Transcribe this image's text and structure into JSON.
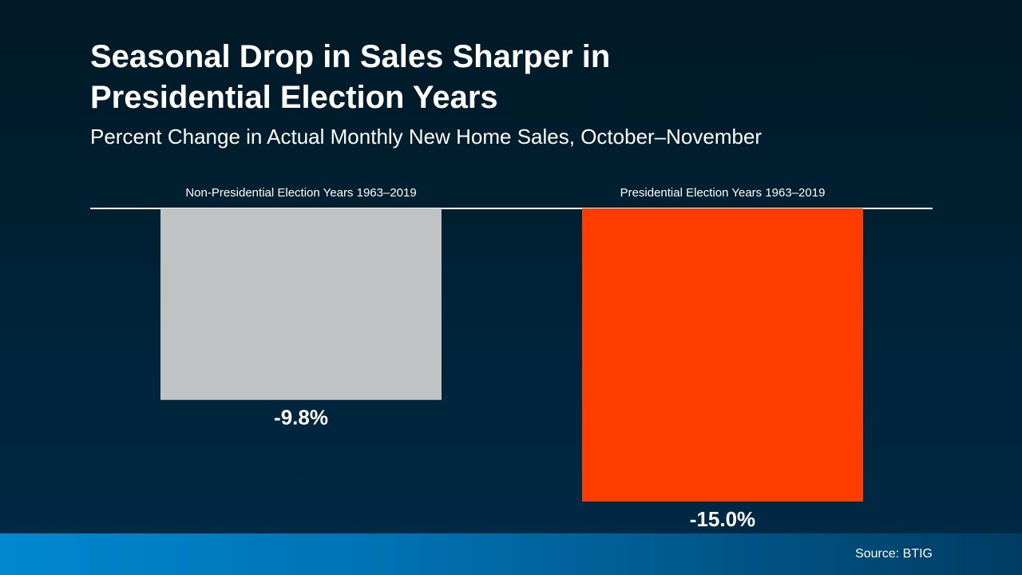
{
  "chart_data": {
    "type": "bar",
    "title": "Seasonal Drop in Sales Sharper in Presidential Election Years",
    "subtitle": "Percent Change in Actual Monthly New Home Sales, October–November",
    "categories": [
      "Non-Presidential Election Years 1963–2019",
      "Presidential Election Years 1963–2019"
    ],
    "values": [
      -9.8,
      -15.0
    ],
    "value_labels": [
      "-9.8%",
      "-15.0%"
    ],
    "colors": [
      "#bfc3c4",
      "#ff3d00"
    ],
    "source": "Source: BTIG"
  }
}
